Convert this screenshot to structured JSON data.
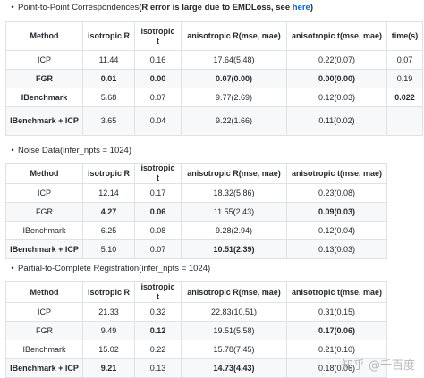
{
  "sections": [
    {
      "heading_plain": "Point-to-Point Correspondences",
      "heading_bold": "(R error is large due to EMDLoss, see ",
      "heading_link": "here",
      "heading_tail": ")",
      "columns": [
        "Method",
        "isotropic R",
        "isotropic t",
        "anisotropic R(mse, mae)",
        "anisotropic t(mse, mae)",
        "time(s)"
      ],
      "rows": [
        [
          "ICP",
          "11.44",
          "0.16",
          "17.64(5.48)",
          "0.22(0.07)",
          "0.07"
        ],
        [
          "FGR",
          "0.01",
          "0.00",
          "0.07(0.00)",
          "0.00(0.00)",
          "0.19"
        ],
        [
          "IBenchmark",
          "5.68",
          "0.07",
          "9.77(2.69)",
          "0.12(0.03)",
          "0.022"
        ],
        [
          "IBenchmark + ICP",
          "3.65",
          "0.04",
          "9.22(1.66)",
          "0.11(0.02)",
          ""
        ]
      ],
      "bold": [
        [
          1,
          0
        ],
        [
          1,
          1
        ],
        [
          1,
          2
        ],
        [
          1,
          3
        ],
        [
          1,
          4
        ],
        [
          2,
          0
        ],
        [
          2,
          5
        ],
        [
          3,
          0
        ]
      ]
    },
    {
      "heading_plain": "Noise Data(infer_npts = 1024)",
      "columns": [
        "Method",
        "isotropic R",
        "isotropic t",
        "anisotropic R(mse, mae)",
        "anisotropic t(mse, mae)"
      ],
      "rows": [
        [
          "ICP",
          "12.14",
          "0.17",
          "18.32(5.86)",
          "0.23(0.08)"
        ],
        [
          "FGR",
          "4.27",
          "0.06",
          "11.55(2.43)",
          "0.09(0.03)"
        ],
        [
          "IBenchmark",
          "6.25",
          "0.08",
          "9.28(2.94)",
          "0.12(0.04)"
        ],
        [
          "IBenchmark + ICP",
          "5.10",
          "0.07",
          "10.51(2.39)",
          "0.13(0.03)"
        ]
      ],
      "bold": [
        [
          1,
          1
        ],
        [
          1,
          2
        ],
        [
          1,
          4
        ],
        [
          3,
          0
        ],
        [
          3,
          3
        ]
      ]
    },
    {
      "heading_plain": "Partial-to-Complete Registration(infer_npts = 1024)",
      "columns": [
        "Method",
        "isotropic R",
        "isotropic t",
        "anisotropic R(mse, mae)",
        "anisotropic t(mse, mae)"
      ],
      "rows": [
        [
          "ICP",
          "21.33",
          "0.32",
          "22.83(10.51)",
          "0.31(0.15)"
        ],
        [
          "FGR",
          "9.49",
          "0.12",
          "19.51(5.58)",
          "0.17(0.06)"
        ],
        [
          "IBenchmark",
          "15.02",
          "0.22",
          "15.78(7.45)",
          "0.21(0.10)"
        ],
        [
          "IBenchmark + ICP",
          "9.21",
          "0.13",
          "14.73(4.43)",
          "0.18(0.06)"
        ]
      ],
      "bold": [
        [
          1,
          2
        ],
        [
          1,
          4
        ],
        [
          3,
          0
        ],
        [
          3,
          1
        ],
        [
          3,
          3
        ]
      ]
    }
  ],
  "watermark": "知乎 @千百度"
}
